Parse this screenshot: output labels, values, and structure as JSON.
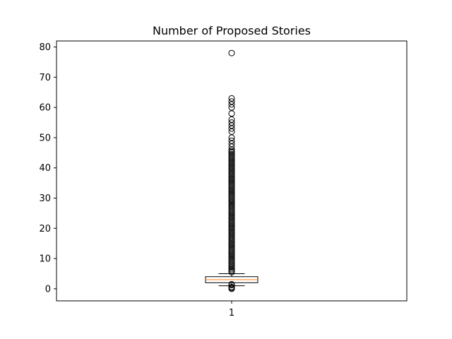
{
  "chart_data": {
    "type": "box",
    "title": "Number of Proposed Stories",
    "xlabel": "",
    "ylabel": "",
    "categories": [
      "1"
    ],
    "ylim": [
      -4,
      82
    ],
    "yticks": [
      0,
      10,
      20,
      30,
      40,
      50,
      60,
      70,
      80
    ],
    "grid": false,
    "box": {
      "q1": 2,
      "median": 3,
      "q3": 4,
      "whisker_low": 1,
      "whisker_high": 5,
      "outliers": [
        0,
        0.3,
        0.6,
        1.2,
        1.5,
        5.5,
        6,
        6.5,
        7,
        7.5,
        8,
        8.5,
        9,
        9.5,
        10,
        10.5,
        11,
        11.5,
        12,
        12.5,
        13,
        13.5,
        14,
        14.5,
        15,
        15.5,
        16,
        16.5,
        17,
        17.5,
        18,
        18.5,
        19,
        19.5,
        20,
        20.5,
        21,
        21.5,
        22,
        22.5,
        23,
        23.5,
        24,
        24.5,
        25,
        25.5,
        26,
        26.5,
        27,
        27.5,
        28,
        28.5,
        29,
        29.5,
        30,
        30.5,
        31,
        31.5,
        32,
        32.5,
        33,
        33.5,
        34,
        34.5,
        35,
        35.5,
        36,
        36.5,
        37,
        37.5,
        38,
        38.5,
        39,
        39.5,
        40,
        40.5,
        41,
        41.5,
        42,
        42.5,
        43,
        43.5,
        44,
        44.5,
        45,
        45.5,
        46,
        47,
        48,
        49,
        50,
        52,
        53,
        54,
        55,
        56,
        58,
        60,
        61,
        62,
        63,
        78
      ]
    },
    "colors": {
      "box": "#000000",
      "median": "#ff7f0e",
      "outlier": "#000000"
    }
  }
}
